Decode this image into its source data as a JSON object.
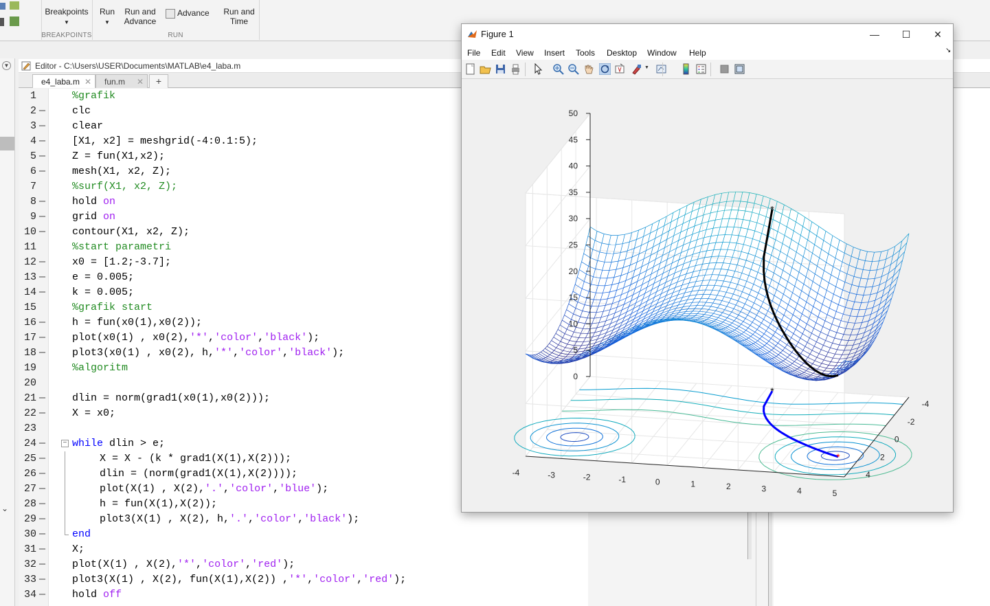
{
  "toolstrip": {
    "buttons": [
      {
        "label": "Breakpoints"
      },
      {
        "label": "Run"
      },
      {
        "label": "Run and\nAdvance"
      },
      {
        "label": "Advance"
      },
      {
        "label": "Run and\nTime"
      }
    ],
    "sections": [
      "BREAKPOINTS",
      "RUN"
    ]
  },
  "editor": {
    "title": "Editor - C:\\Users\\USER\\Documents\\MATLAB\\e4_laba.m",
    "tabs": [
      {
        "label": "e4_laba.m",
        "active": true
      },
      {
        "label": "fun.m",
        "active": false
      }
    ],
    "add_tab": "+",
    "lines": [
      {
        "n": "1",
        "dash": false,
        "indent": 0,
        "tokens": [
          {
            "t": "%grafik",
            "c": "comment"
          }
        ]
      },
      {
        "n": "2",
        "dash": true,
        "indent": 0,
        "tokens": [
          {
            "t": "clc",
            "c": "code"
          }
        ]
      },
      {
        "n": "3",
        "dash": true,
        "indent": 0,
        "tokens": [
          {
            "t": "clear",
            "c": "code"
          }
        ]
      },
      {
        "n": "4",
        "dash": true,
        "indent": 0,
        "tokens": [
          {
            "t": "[X1, x2] = meshgrid(-4:0.1:5);",
            "c": "code"
          }
        ]
      },
      {
        "n": "5",
        "dash": true,
        "indent": 0,
        "tokens": [
          {
            "t": "Z = fun(X1,x2);",
            "c": "code"
          }
        ]
      },
      {
        "n": "6",
        "dash": true,
        "indent": 0,
        "tokens": [
          {
            "t": "mesh(X1, x2, Z);",
            "c": "code"
          }
        ]
      },
      {
        "n": "7",
        "dash": false,
        "indent": 0,
        "tokens": [
          {
            "t": "%surf(X1, x2, Z);",
            "c": "comment"
          }
        ]
      },
      {
        "n": "8",
        "dash": true,
        "indent": 0,
        "tokens": [
          {
            "t": "hold ",
            "c": "code"
          },
          {
            "t": "on",
            "c": "string"
          }
        ]
      },
      {
        "n": "9",
        "dash": true,
        "indent": 0,
        "tokens": [
          {
            "t": "grid ",
            "c": "code"
          },
          {
            "t": "on",
            "c": "string"
          }
        ]
      },
      {
        "n": "10",
        "dash": true,
        "indent": 0,
        "tokens": [
          {
            "t": "contour(X1, x2, Z);",
            "c": "code"
          }
        ]
      },
      {
        "n": "11",
        "dash": false,
        "indent": 0,
        "tokens": [
          {
            "t": "%start parametri",
            "c": "comment"
          }
        ]
      },
      {
        "n": "12",
        "dash": true,
        "indent": 0,
        "tokens": [
          {
            "t": "x0 = [1.2;-3.7];",
            "c": "code"
          }
        ]
      },
      {
        "n": "13",
        "dash": true,
        "indent": 0,
        "tokens": [
          {
            "t": "e = 0.005;",
            "c": "code"
          }
        ]
      },
      {
        "n": "14",
        "dash": true,
        "indent": 0,
        "tokens": [
          {
            "t": "k = 0.005;",
            "c": "code"
          }
        ]
      },
      {
        "n": "15",
        "dash": false,
        "indent": 0,
        "tokens": [
          {
            "t": "%grafik start",
            "c": "comment"
          }
        ]
      },
      {
        "n": "16",
        "dash": true,
        "indent": 0,
        "tokens": [
          {
            "t": "h = fun(x0(1),x0(2));",
            "c": "code"
          }
        ]
      },
      {
        "n": "17",
        "dash": true,
        "indent": 0,
        "tokens": [
          {
            "t": "plot(x0(1) , x0(2),",
            "c": "code"
          },
          {
            "t": "'*'",
            "c": "string"
          },
          {
            "t": ",",
            "c": "code"
          },
          {
            "t": "'color'",
            "c": "string"
          },
          {
            "t": ",",
            "c": "code"
          },
          {
            "t": "'black'",
            "c": "string"
          },
          {
            "t": ");",
            "c": "code"
          }
        ]
      },
      {
        "n": "18",
        "dash": true,
        "indent": 0,
        "tokens": [
          {
            "t": "plot3(x0(1) , x0(2), h,",
            "c": "code"
          },
          {
            "t": "'*'",
            "c": "string"
          },
          {
            "t": ",",
            "c": "code"
          },
          {
            "t": "'color'",
            "c": "string"
          },
          {
            "t": ",",
            "c": "code"
          },
          {
            "t": "'black'",
            "c": "string"
          },
          {
            "t": ");",
            "c": "code"
          }
        ]
      },
      {
        "n": "19",
        "dash": false,
        "indent": 0,
        "tokens": [
          {
            "t": "%algoritm",
            "c": "comment"
          }
        ]
      },
      {
        "n": "20",
        "dash": false,
        "indent": 0,
        "tokens": []
      },
      {
        "n": "21",
        "dash": true,
        "indent": 0,
        "tokens": [
          {
            "t": "dlin = norm(grad1(x0(1),x0(2)));",
            "c": "code"
          }
        ]
      },
      {
        "n": "22",
        "dash": true,
        "indent": 0,
        "tokens": [
          {
            "t": "X = x0;",
            "c": "code"
          }
        ]
      },
      {
        "n": "23",
        "dash": false,
        "indent": 0,
        "tokens": []
      },
      {
        "n": "24",
        "dash": true,
        "indent": 0,
        "fold": true,
        "tokens": [
          {
            "t": "while",
            "c": "keyword"
          },
          {
            "t": " dlin > e;",
            "c": "code"
          }
        ]
      },
      {
        "n": "25",
        "dash": true,
        "indent": 1,
        "tokens": [
          {
            "t": "X = X - (k * grad1(X(1),X(2)));",
            "c": "code"
          }
        ]
      },
      {
        "n": "26",
        "dash": true,
        "indent": 1,
        "tokens": [
          {
            "t": "dlin = (norm(grad1(X(1),X(2))));",
            "c": "code"
          }
        ]
      },
      {
        "n": "27",
        "dash": true,
        "indent": 1,
        "tokens": [
          {
            "t": "plot(X(1) , X(2),",
            "c": "code"
          },
          {
            "t": "'.'",
            "c": "string"
          },
          {
            "t": ",",
            "c": "code"
          },
          {
            "t": "'color'",
            "c": "string"
          },
          {
            "t": ",",
            "c": "code"
          },
          {
            "t": "'blue'",
            "c": "string"
          },
          {
            "t": ");",
            "c": "code"
          }
        ]
      },
      {
        "n": "28",
        "dash": true,
        "indent": 1,
        "tokens": [
          {
            "t": "h = fun(X(1),X(2));",
            "c": "code"
          }
        ]
      },
      {
        "n": "29",
        "dash": true,
        "indent": 1,
        "tokens": [
          {
            "t": "plot3(X(1) , X(2), h,",
            "c": "code"
          },
          {
            "t": "'.'",
            "c": "string"
          },
          {
            "t": ",",
            "c": "code"
          },
          {
            "t": "'color'",
            "c": "string"
          },
          {
            "t": ",",
            "c": "code"
          },
          {
            "t": "'black'",
            "c": "string"
          },
          {
            "t": ");",
            "c": "code"
          }
        ]
      },
      {
        "n": "30",
        "dash": true,
        "indent": 0,
        "foldend": true,
        "tokens": [
          {
            "t": "end",
            "c": "keyword"
          }
        ]
      },
      {
        "n": "31",
        "dash": true,
        "indent": 0,
        "tokens": [
          {
            "t": "X;",
            "c": "code"
          }
        ]
      },
      {
        "n": "32",
        "dash": true,
        "indent": 0,
        "tokens": [
          {
            "t": "plot(X(1) , X(2),",
            "c": "code"
          },
          {
            "t": "'*'",
            "c": "string"
          },
          {
            "t": ",",
            "c": "code"
          },
          {
            "t": "'color'",
            "c": "string"
          },
          {
            "t": ",",
            "c": "code"
          },
          {
            "t": "'red'",
            "c": "string"
          },
          {
            "t": ");",
            "c": "code"
          }
        ]
      },
      {
        "n": "33",
        "dash": true,
        "indent": 0,
        "tokens": [
          {
            "t": "plot3(X(1) , X(2), fun(X(1),X(2)) ,",
            "c": "code"
          },
          {
            "t": "'*'",
            "c": "string"
          },
          {
            "t": ",",
            "c": "code"
          },
          {
            "t": "'color'",
            "c": "string"
          },
          {
            "t": ",",
            "c": "code"
          },
          {
            "t": "'red'",
            "c": "string"
          },
          {
            "t": ");",
            "c": "code"
          }
        ]
      },
      {
        "n": "34",
        "dash": true,
        "indent": 0,
        "tokens": [
          {
            "t": "hold ",
            "c": "code"
          },
          {
            "t": "off",
            "c": "string"
          }
        ]
      }
    ]
  },
  "syntax_colors": {
    "comment": "#228b22",
    "string": "#a020f0",
    "keyword": "#0000ff",
    "code": "#000000"
  },
  "figure": {
    "title": "Figure 1",
    "menu": [
      "File",
      "Edit",
      "View",
      "Insert",
      "Tools",
      "Desktop",
      "Window",
      "Help"
    ],
    "window_controls": [
      "—",
      "☐",
      "✕"
    ],
    "toolbar_icons": [
      "new-figure-icon",
      "open-icon",
      "save-icon",
      "print-icon",
      "pointer-icon",
      "zoom-in-icon",
      "zoom-out-icon",
      "pan-icon",
      "rotate-3d-icon",
      "data-cursor-icon",
      "brush-icon",
      "link-plot-icon",
      "colorbar-icon",
      "legend-icon",
      "hide-plot-tools-icon",
      "show-plot-tools-icon"
    ]
  },
  "chart_data": {
    "type": "surface-3d",
    "surface": "mesh + contour of Z = fun(X1, x2) over meshgrid(-4:0.1:5)",
    "x_ticks": [
      "-4",
      "-3",
      "-2",
      "-1",
      "0",
      "1",
      "2",
      "3",
      "4",
      "5"
    ],
    "y_ticks": [
      "-4",
      "-2",
      "0",
      "2",
      "4"
    ],
    "z_ticks": [
      "0",
      "5",
      "10",
      "15",
      "20",
      "25",
      "30",
      "35",
      "40",
      "45",
      "50"
    ],
    "xlim": [
      -4,
      5
    ],
    "ylim": [
      -4,
      5
    ],
    "zlim": [
      0,
      50
    ],
    "grid": true,
    "colormap": "parula",
    "paths": [
      {
        "name": "descent-3d",
        "color": "#000000"
      },
      {
        "name": "descent-2d",
        "color": "#0000ff"
      }
    ],
    "start_point": {
      "x": 1.2,
      "y": -3.7,
      "marker": "*",
      "color": "#000000"
    },
    "end_marker": {
      "marker": "*",
      "color": "#ff0000"
    }
  }
}
